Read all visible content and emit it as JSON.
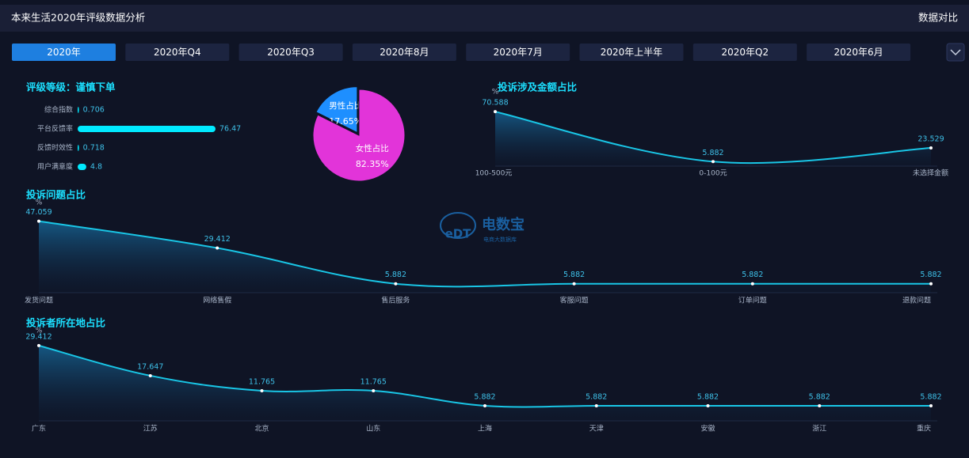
{
  "header": {
    "title": "本来生活2020年评级数据分析",
    "action": "数据对比"
  },
  "tabs": {
    "items": [
      "2020年",
      "2020年Q4",
      "2020年Q3",
      "2020年8月",
      "2020年7月",
      "2020年上半年",
      "2020年Q2",
      "2020年6月"
    ],
    "active": 0
  },
  "watermark": {
    "logo": "eDT",
    "name": "电数宝",
    "subtitle": "电商大数据库"
  },
  "chart_data": [
    {
      "type": "hbar",
      "title": "评级等级：谨慎下单",
      "categories": [
        "综合指数",
        "平台反馈率",
        "反馈时效性",
        "用户满意度"
      ],
      "values": [
        0.706,
        76.47,
        0.718,
        4.8
      ],
      "color": "#00eaff"
    },
    {
      "type": "pie",
      "categories": [
        "男性占比",
        "女性占比"
      ],
      "values": [
        17.65,
        82.35
      ],
      "value_labels": [
        "17.65%",
        "82.35%"
      ],
      "colors": [
        "#1e8fff",
        "#e234d9"
      ]
    },
    {
      "type": "line",
      "title": "投诉涉及金额占比",
      "ylabel": "%",
      "categories": [
        "100-500元",
        "0-100元",
        "未选择金额"
      ],
      "values": [
        70.588,
        5.882,
        23.529
      ],
      "ylim": [
        0,
        80
      ],
      "color": "#19c6e6"
    },
    {
      "type": "line",
      "title": "投诉问题占比",
      "ylabel": "%",
      "categories": [
        "发货问题",
        "网络售假",
        "售后服务",
        "客服问题",
        "订单问题",
        "退款问题"
      ],
      "values": [
        47.059,
        29.412,
        5.882,
        5.882,
        5.882,
        5.882
      ],
      "ylim": [
        0,
        50
      ],
      "color": "#19c6e6"
    },
    {
      "type": "line",
      "title": "投诉者所在地占比",
      "ylabel": "%",
      "categories": [
        "广东",
        "江苏",
        "北京",
        "山东",
        "上海",
        "天津",
        "安徽",
        "浙江",
        "重庆"
      ],
      "values": [
        29.412,
        17.647,
        11.765,
        11.765,
        5.882,
        5.882,
        5.882,
        5.882,
        5.882
      ],
      "ylim": [
        0,
        30
      ],
      "color": "#19c6e6"
    }
  ]
}
